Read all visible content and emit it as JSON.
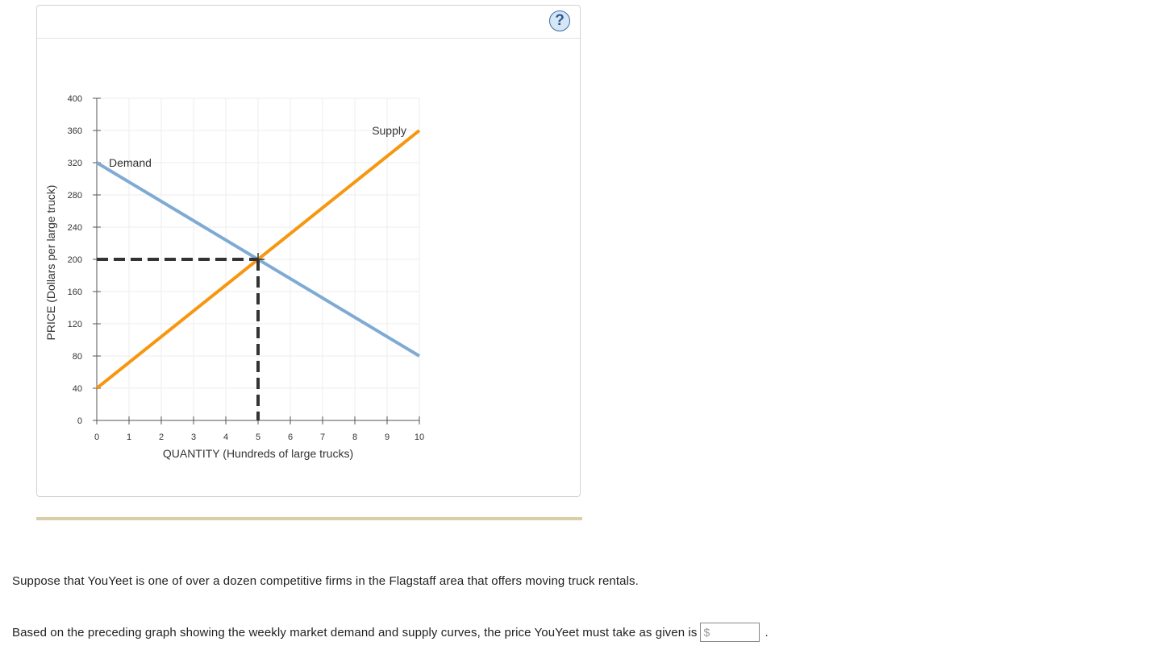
{
  "help": {
    "label": "?"
  },
  "chart_data": {
    "type": "line",
    "xlabel": "QUANTITY (Hundreds of large trucks)",
    "ylabel": "PRICE (Dollars per large truck)",
    "xlim": [
      0,
      10
    ],
    "ylim": [
      0,
      400
    ],
    "x_ticks": [
      0,
      1,
      2,
      3,
      4,
      5,
      6,
      7,
      8,
      9,
      10
    ],
    "y_ticks": [
      0,
      40,
      80,
      120,
      160,
      200,
      240,
      280,
      320,
      360,
      400
    ],
    "grid": true,
    "series": [
      {
        "name": "Demand",
        "color": "#7eaad4",
        "points": [
          [
            0,
            320
          ],
          [
            10,
            80
          ]
        ]
      },
      {
        "name": "Supply",
        "color": "#f7960f",
        "points": [
          [
            0,
            40
          ],
          [
            10,
            360
          ]
        ]
      }
    ],
    "equilibrium": {
      "x": 5,
      "y": 200,
      "style": "dashed",
      "color": "#333333"
    }
  },
  "question": {
    "line1": "Suppose that YouYeet is one of over a dozen competitive firms in the Flagstaff area that offers moving truck rentals.",
    "line2": "Based on the preceding graph showing the weekly market demand and supply curves, the price YouYeet must take as given is",
    "currency": "$",
    "answer_value": "",
    "end": "."
  }
}
